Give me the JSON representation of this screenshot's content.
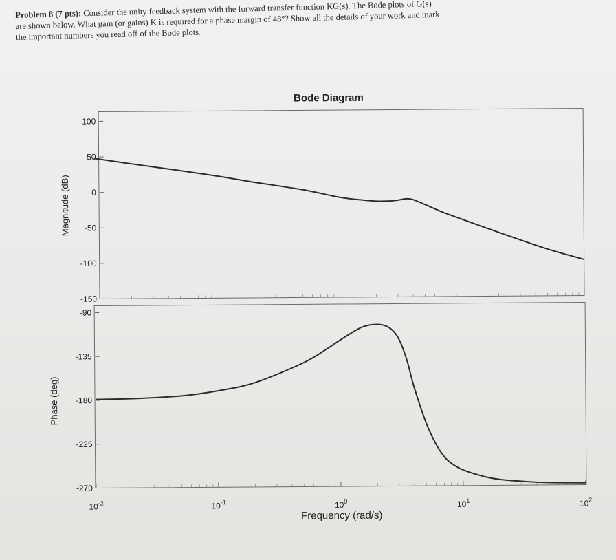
{
  "problem": {
    "lead": "Problem 8 (7 pts):",
    "line1": "Consider the unity feedback system with the forward transfer function KG(s). The Bode plots of G(s)",
    "line2": "are shown below. What gain (or gains) K is required for a phase margin of 48°? Show all the details of your work and mark",
    "line3": "the important numbers you read off of the Bode plots."
  },
  "chart_data": {
    "type": "line",
    "title": "Bode Diagram",
    "xlabel": "Frequency (rad/s)",
    "x_scale": "log",
    "xlim": [
      0.01,
      100
    ],
    "x_ticks": [
      {
        "value": 0.01,
        "base": "10",
        "exp": "-2"
      },
      {
        "value": 0.1,
        "base": "10",
        "exp": "-1"
      },
      {
        "value": 1,
        "base": "10",
        "exp": "0"
      },
      {
        "value": 10,
        "base": "10",
        "exp": "1"
      },
      {
        "value": 100,
        "base": "10",
        "exp": "2"
      }
    ],
    "magnitude": {
      "ylabel": "Magnitude (dB)",
      "ylim": [
        -150,
        100
      ],
      "ticks": [
        "100",
        "50",
        "0",
        "-50",
        "-100",
        "-150"
      ],
      "tick_values": [
        100,
        50,
        0,
        -50,
        -100,
        -150
      ],
      "x": [
        0.01,
        0.02,
        0.05,
        0.1,
        0.2,
        0.5,
        1,
        1.5,
        2,
        2.5,
        3,
        3.5,
        4,
        5,
        7,
        10,
        20,
        50,
        100
      ],
      "y": [
        48,
        40,
        30,
        22,
        13,
        2,
        -9,
        -13,
        -15,
        -15,
        -14,
        -12,
        -13,
        -20,
        -31,
        -41,
        -60,
        -84,
        -99
      ]
    },
    "phase": {
      "ylabel": "Phase (deg)",
      "ylim": [
        -270,
        -90
      ],
      "ticks": [
        "-90",
        "-135",
        "-180",
        "-225",
        "-270"
      ],
      "tick_values": [
        -90,
        -135,
        -180,
        -225,
        -270
      ],
      "x": [
        0.01,
        0.02,
        0.05,
        0.1,
        0.2,
        0.5,
        0.8,
        1,
        1.5,
        2,
        2.5,
        3,
        3.5,
        4,
        5,
        6,
        7,
        8,
        10,
        15,
        20,
        30,
        50,
        100
      ],
      "y": [
        -179,
        -178.5,
        -176,
        -171,
        -163,
        -143,
        -128,
        -120,
        -107,
        -104,
        -107,
        -118,
        -140,
        -168,
        -205,
        -227,
        -240,
        -247,
        -254,
        -261,
        -264,
        -266,
        -267.5,
        -268
      ]
    }
  },
  "colors": {
    "curve": "#2b2b2b",
    "axis": "#555555",
    "paper": "#efeeec"
  }
}
